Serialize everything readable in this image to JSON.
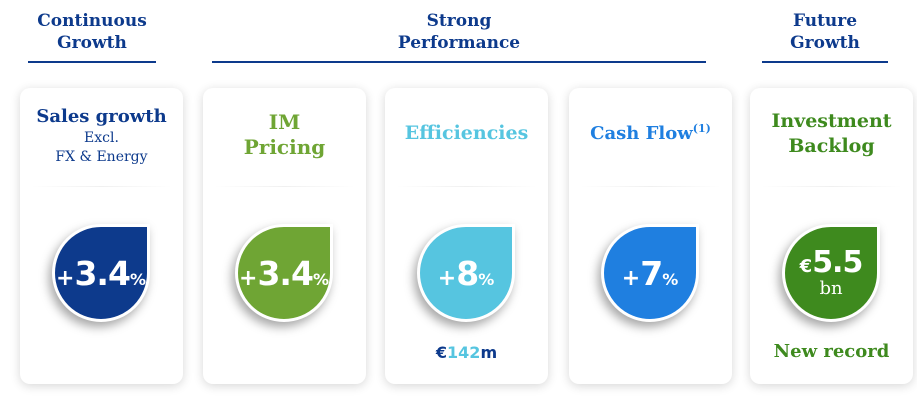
{
  "groups": {
    "continuous": {
      "line1": "Continuous",
      "line2": "Growth"
    },
    "strong": {
      "line1": "Strong",
      "line2": "Performance"
    },
    "future": {
      "line1": "Future",
      "line2": "Growth"
    }
  },
  "cards": {
    "sales": {
      "title": "Sales growth",
      "sub1": "Excl.",
      "sub2": "FX & Energy",
      "sign": "+",
      "value": "3.4",
      "unit": "%",
      "color": "#0d3a8c"
    },
    "pricing": {
      "title1": "IM",
      "title2": "Pricing",
      "sign": "+",
      "value": "3.4",
      "unit": "%",
      "color": "#6fa534"
    },
    "efficiencies": {
      "title": "Efficiencies",
      "sign": "+",
      "value": "8",
      "unit": "%",
      "below_prefix": "€",
      "below_value": "142",
      "below_unit": "m",
      "color": "#56c5e0"
    },
    "cashflow": {
      "title": "Cash Flow",
      "footnote": "(1)",
      "sign": "+",
      "value": "7",
      "unit": "%",
      "color": "#1f7fe0"
    },
    "backlog": {
      "title1": "Investment",
      "title2": "Backlog",
      "prefix": "€",
      "value": "5.5",
      "unit": "bn",
      "below": "New record",
      "color": "#3e8a1e"
    }
  }
}
